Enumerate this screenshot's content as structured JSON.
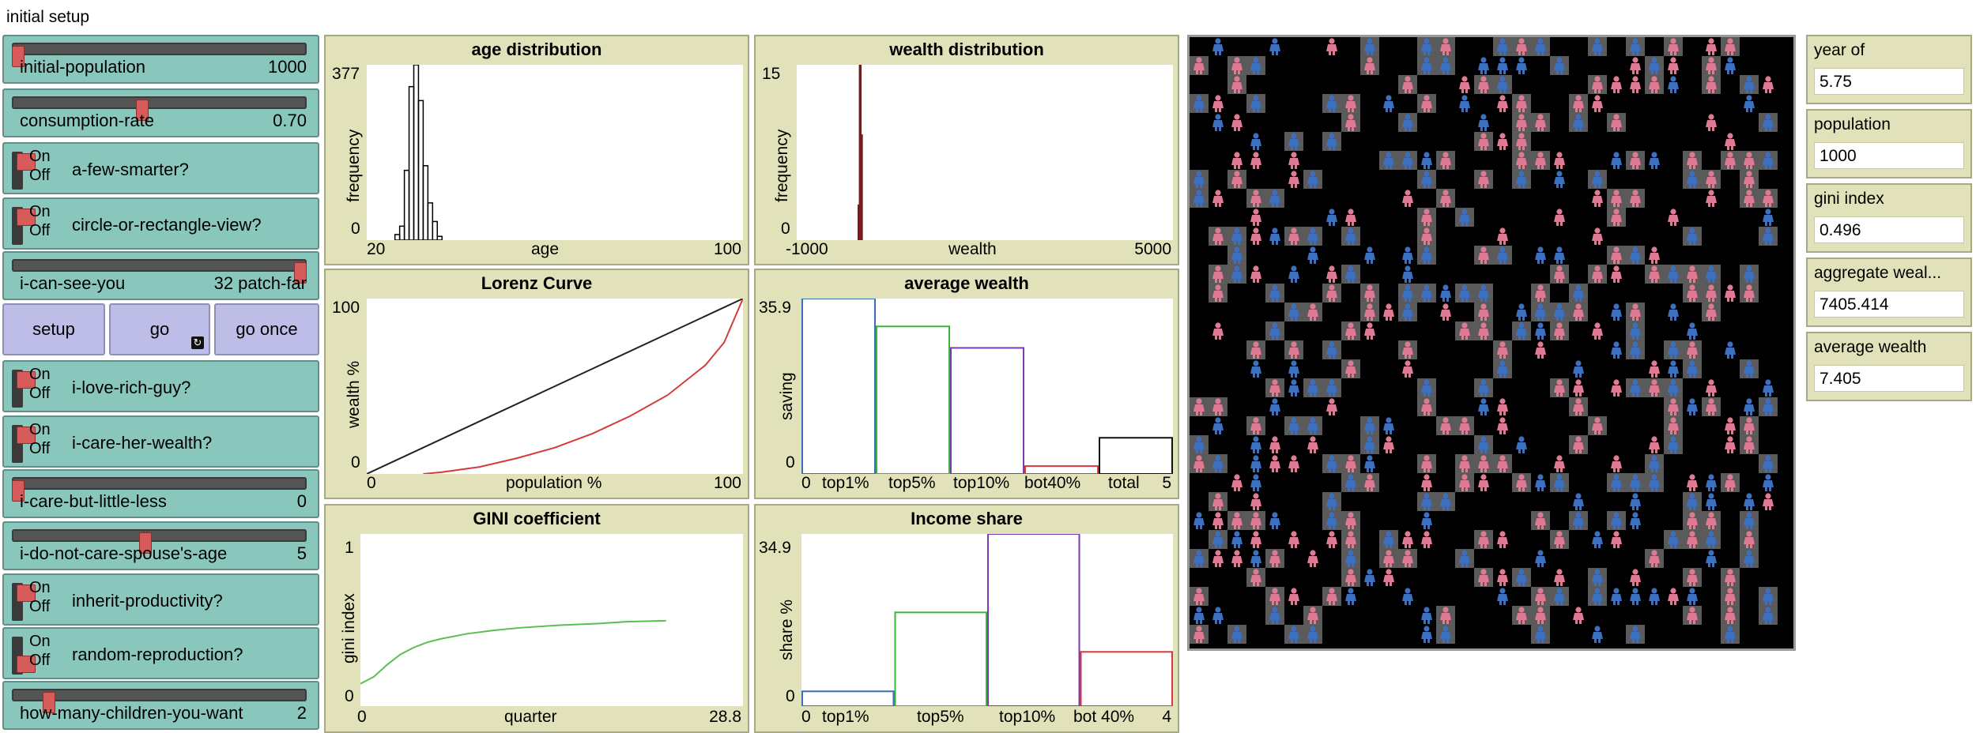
{
  "title": "initial setup",
  "controls": {
    "initial_population": {
      "name": "initial-population",
      "value": "1000",
      "fraction": 0.0
    },
    "consumption_rate": {
      "name": "consumption-rate",
      "value": "0.70",
      "fraction": 0.44
    },
    "a_few_smarter": {
      "name": "a-few-smarter?",
      "on": "On",
      "off": "Off",
      "state": "on"
    },
    "circle_or_rectangle_view": {
      "name": "circle-or-rectangle-view?",
      "on": "On",
      "off": "Off",
      "state": "on"
    },
    "i_can_see_you": {
      "name": "i-can-see-you",
      "value": "32 patch-far",
      "fraction": 1.0
    },
    "setup_label": "setup",
    "go_label": "go",
    "go_once_label": "go once",
    "i_love_rich_guy": {
      "name": "i-love-rich-guy?",
      "on": "On",
      "off": "Off",
      "state": "on"
    },
    "i_care_her_wealth": {
      "name": "i-care-her-wealth?",
      "on": "On",
      "off": "Off",
      "state": "on"
    },
    "i_care_but_little_less": {
      "name": "i-care-but-little-less",
      "value": "0",
      "fraction": 0.0
    },
    "i_do_not_care_spouses_age": {
      "name": "i-do-not-care-spouse's-age",
      "value": "5",
      "fraction": 0.45
    },
    "inherit_productivity": {
      "name": "inherit-productivity?",
      "on": "On",
      "off": "Off",
      "state": "on"
    },
    "random_reproduction": {
      "name": "random-reproduction?",
      "on": "On",
      "off": "Off",
      "state": "off"
    },
    "how_many_children": {
      "name": "how-many-children-you-want",
      "value": "2",
      "fraction": 0.11
    }
  },
  "plots": {
    "age": {
      "title": "age distribution",
      "ylabel": "frequency",
      "xlabel": "age",
      "xmin": "20",
      "xmax": "100",
      "ymin": "0",
      "ymax": "377"
    },
    "wealth": {
      "title": "wealth distribution",
      "ylabel": "frequency",
      "xlabel": "wealth",
      "xmin": "-1000",
      "xmax": "5000",
      "ymin": "0",
      "ymax": "15"
    },
    "lorenz": {
      "title": "Lorenz Curve",
      "ylabel": "wealth %",
      "xlabel": "population %",
      "xmin": "0",
      "xmax": "100",
      "ymin": "0",
      "ymax": "100"
    },
    "avg": {
      "title": "average wealth",
      "ylabel": "saving",
      "xmin": "0",
      "xmax": "5",
      "ymin": "0",
      "ymax": "35.9",
      "cats": [
        "top1%",
        "top5%",
        "top10%",
        "bot40%",
        "total"
      ]
    },
    "gini": {
      "title": "GINI coefficient",
      "ylabel": "gini index",
      "xlabel": "quarter",
      "xmin": "0",
      "xmax": "28.8",
      "ymin": "0",
      "ymax": "1"
    },
    "income": {
      "title": "Income share",
      "ylabel": "share %",
      "xmin": "0",
      "xmax": "4",
      "ymin": "0",
      "ymax": "34.9",
      "cats": [
        "top1%",
        "top5%",
        "top10%",
        "bot 40%"
      ]
    }
  },
  "chart_data": [
    {
      "type": "bar",
      "title": "age distribution",
      "xlabel": "age",
      "ylabel": "frequency",
      "xlim": [
        20,
        100
      ],
      "ylim": [
        0,
        377
      ],
      "x": [
        26,
        27,
        28,
        29,
        30,
        31,
        32,
        33,
        34,
        35
      ],
      "values": [
        12,
        30,
        150,
        330,
        377,
        300,
        160,
        80,
        40,
        8
      ]
    },
    {
      "type": "bar",
      "title": "wealth distribution",
      "xlabel": "wealth",
      "ylabel": "frequency",
      "xlim": [
        -1000,
        5000
      ],
      "ylim": [
        0,
        15
      ],
      "x": [
        -20,
        0,
        20
      ],
      "values": [
        3,
        15,
        9
      ]
    },
    {
      "type": "line",
      "title": "Lorenz Curve",
      "xlabel": "population %",
      "ylabel": "wealth %",
      "xlim": [
        0,
        100
      ],
      "ylim": [
        0,
        100
      ],
      "series": [
        {
          "color": "#222222",
          "x": [
            0,
            100
          ],
          "y": [
            0,
            100
          ]
        },
        {
          "color": "#d73a3a",
          "x": [
            15,
            20,
            30,
            40,
            50,
            60,
            70,
            80,
            90,
            95,
            100
          ],
          "y": [
            0,
            1,
            4,
            9,
            15,
            23,
            33,
            45,
            62,
            75,
            100
          ]
        }
      ]
    },
    {
      "type": "bar",
      "title": "average wealth",
      "ylabel": "saving",
      "xlim": [
        0,
        5
      ],
      "ylim": [
        0,
        35.9
      ],
      "categories": [
        "top1%",
        "top5%",
        "top10%",
        "bot40%",
        "total"
      ],
      "values": [
        35.9,
        30.2,
        25.8,
        1.6,
        7.4
      ],
      "colors": [
        "#3a6fb5",
        "#3ab53a",
        "#7a3ab5",
        "#d73a3a",
        "#111111"
      ]
    },
    {
      "type": "line",
      "title": "GINI coefficient",
      "xlabel": "quarter",
      "ylabel": "gini index",
      "xlim": [
        0,
        28.8
      ],
      "ylim": [
        0,
        1
      ],
      "series": [
        {
          "color": "#5bbf4f",
          "x": [
            0,
            1,
            2,
            3,
            4,
            5,
            6,
            8,
            10,
            12,
            15,
            18,
            20,
            23
          ],
          "y": [
            0.13,
            0.17,
            0.24,
            0.3,
            0.34,
            0.37,
            0.39,
            0.42,
            0.44,
            0.455,
            0.47,
            0.48,
            0.49,
            0.496
          ]
        }
      ]
    },
    {
      "type": "bar",
      "title": "Income share",
      "ylabel": "share %",
      "xlim": [
        0,
        4
      ],
      "ylim": [
        0,
        34.9
      ],
      "categories": [
        "top1%",
        "top5%",
        "top10%",
        "bot 40%"
      ],
      "values": [
        3.0,
        19.0,
        34.9,
        11.0
      ],
      "colors": [
        "#3a6fb5",
        "#3ab53a",
        "#7a3ab5",
        "#d73a3a"
      ]
    }
  ],
  "monitors": [
    {
      "label": "year of",
      "value": "5.75"
    },
    {
      "label": "population",
      "value": "1000"
    },
    {
      "label": "gini index",
      "value": "0.496"
    },
    {
      "label": "aggregate weal...",
      "value": "7405.414"
    },
    {
      "label": "average wealth",
      "value": "7.405"
    }
  ],
  "world": {
    "background": "#000000",
    "female_color": "#e07a93",
    "male_color": "#3d6fc0",
    "patch_color": "#5a5a5a"
  }
}
